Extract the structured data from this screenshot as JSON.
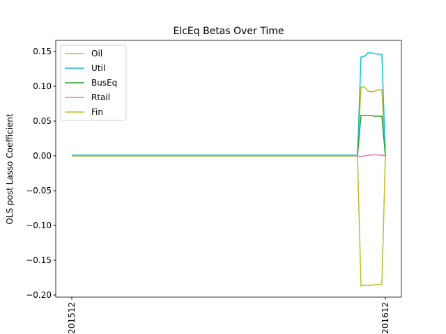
{
  "chart_data": {
    "type": "line",
    "title": "ElcEq Betas Over Time",
    "y_label": "OLS post Lasso Coefficient",
    "x": [
      0,
      82,
      83,
      84,
      85,
      86,
      87,
      88,
      89,
      90
    ],
    "series": [
      {
        "name": "Oil",
        "color": "#bcbd22",
        "values": [
          0,
          0,
          0.099,
          0.099,
          0.093,
          0.092,
          0.093,
          0.095,
          0.095,
          0
        ]
      },
      {
        "name": "Util",
        "color": "#17becf",
        "values": [
          0.001,
          0.001,
          0.142,
          0.143,
          0.148,
          0.148,
          0.147,
          0.146,
          0.146,
          0.001
        ]
      },
      {
        "name": "BusEq",
        "color": "#2ca02c",
        "values": [
          0,
          0,
          0.058,
          0.058,
          0.058,
          0.058,
          0.057,
          0.057,
          0.057,
          0
        ]
      },
      {
        "name": "Rtail",
        "color": "#e377c2",
        "values": [
          0,
          0,
          -0.001,
          0,
          0.001,
          0.001,
          0.002,
          0.001,
          0.001,
          0
        ]
      },
      {
        "name": "Fin",
        "color": "#bcbd22",
        "values": [
          0,
          0,
          -0.187,
          -0.186,
          -0.186,
          -0.186,
          -0.185,
          -0.185,
          -0.185,
          0
        ]
      }
    ],
    "xlim": [
      -4.6,
      94.6
    ],
    "xticks": [
      {
        "value": 0,
        "label": "201512"
      },
      {
        "value": 90,
        "label": "201612"
      }
    ],
    "ylim": [
      -0.203,
      0.166
    ],
    "yticks": [
      {
        "value": -0.2,
        "label": "−0.20"
      },
      {
        "value": -0.15,
        "label": "−0.15"
      },
      {
        "value": -0.1,
        "label": "−0.10"
      },
      {
        "value": -0.05,
        "label": "−0.05"
      },
      {
        "value": 0,
        "label": "0.00"
      },
      {
        "value": 0.05,
        "label": "0.05"
      },
      {
        "value": 0.1,
        "label": "0.10"
      },
      {
        "value": 0.15,
        "label": "0.15"
      }
    ],
    "legend": "upper left"
  }
}
